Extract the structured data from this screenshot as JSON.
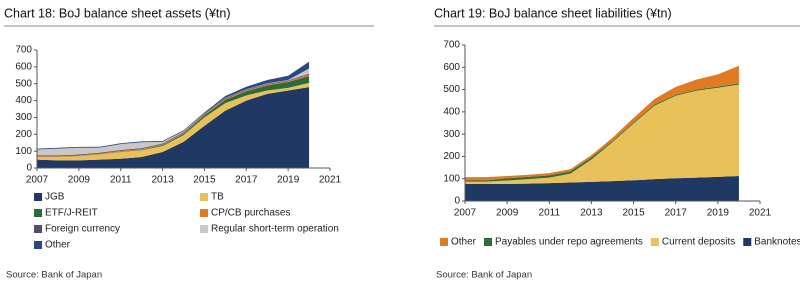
{
  "chart_data": [
    {
      "type": "area",
      "title": "Chart 18: BoJ balance sheet assets (¥tn)",
      "source": "Source: Bank of Japan",
      "x": [
        2007,
        2008,
        2009,
        2010,
        2011,
        2012,
        2013,
        2014,
        2015,
        2016,
        2017,
        2018,
        2019,
        2020
      ],
      "series": [
        {
          "name": "JGB",
          "color": "#1f3864",
          "values": [
            50,
            45,
            45,
            50,
            55,
            65,
            95,
            155,
            250,
            340,
            400,
            440,
            460,
            480
          ]
        },
        {
          "name": "TB",
          "color": "#e8c15a",
          "values": [
            15,
            20,
            25,
            30,
            40,
            40,
            35,
            40,
            50,
            45,
            30,
            20,
            15,
            25
          ]
        },
        {
          "name": "ETF/J-REIT",
          "color": "#2e6b3a",
          "values": [
            0,
            0,
            0,
            1,
            2,
            3,
            5,
            8,
            13,
            20,
            25,
            30,
            35,
            40
          ]
        },
        {
          "name": "CP/CB purchases",
          "color": "#e07b24",
          "values": [
            5,
            5,
            5,
            5,
            5,
            5,
            5,
            5,
            5,
            5,
            5,
            5,
            5,
            10
          ]
        },
        {
          "name": "Foreign currency",
          "color": "#5a4a7a",
          "values": [
            5,
            5,
            5,
            5,
            5,
            5,
            5,
            5,
            5,
            5,
            5,
            5,
            5,
            5
          ]
        },
        {
          "name": "Regular short-term operation",
          "color": "#c8c8c8",
          "values": [
            35,
            40,
            40,
            30,
            35,
            35,
            10,
            5,
            2,
            2,
            2,
            2,
            2,
            30
          ]
        },
        {
          "name": "Other",
          "color": "#2a4a7f",
          "values": [
            5,
            5,
            5,
            5,
            5,
            5,
            5,
            5,
            5,
            10,
            15,
            20,
            25,
            40
          ]
        }
      ],
      "xlim": [
        2007,
        2021
      ],
      "xticks": [
        2007,
        2009,
        2011,
        2013,
        2015,
        2017,
        2019,
        2021
      ],
      "ylim": [
        0,
        700
      ],
      "yticks": [
        0,
        100,
        200,
        300,
        400,
        500,
        600,
        700
      ],
      "grid": false,
      "legend": "bottom"
    },
    {
      "type": "area",
      "title": "Chart 19: BoJ balance sheet liabilities (¥tn)",
      "source": "Source: Bank of Japan",
      "x": [
        2007,
        2008,
        2009,
        2010,
        2011,
        2012,
        2013,
        2014,
        2015,
        2016,
        2017,
        2018,
        2019,
        2020
      ],
      "series": [
        {
          "name": "Banknotes",
          "color": "#1f3864",
          "values": [
            77,
            77,
            77,
            78,
            80,
            83,
            86,
            89,
            93,
            98,
            102,
            105,
            108,
            112
          ]
        },
        {
          "name": "Current deposits",
          "color": "#e8c15a",
          "values": [
            10,
            10,
            15,
            20,
            25,
            40,
            100,
            175,
            255,
            330,
            370,
            390,
            400,
            410
          ]
        },
        {
          "name": "Payables under repo agreements",
          "color": "#2e6b3a",
          "values": [
            5,
            5,
            10,
            10,
            10,
            10,
            10,
            5,
            5,
            5,
            5,
            5,
            5,
            5
          ]
        },
        {
          "name": "Other",
          "color": "#e07b24",
          "values": [
            15,
            15,
            10,
            10,
            10,
            10,
            10,
            15,
            20,
            25,
            35,
            45,
            55,
            80
          ]
        }
      ],
      "xlim": [
        2007,
        2021
      ],
      "xticks": [
        2007,
        2009,
        2011,
        2013,
        2015,
        2017,
        2019,
        2021
      ],
      "ylim": [
        0,
        700
      ],
      "yticks": [
        0,
        100,
        200,
        300,
        400,
        500,
        600,
        700
      ],
      "grid": false,
      "legend": "bottom"
    }
  ]
}
